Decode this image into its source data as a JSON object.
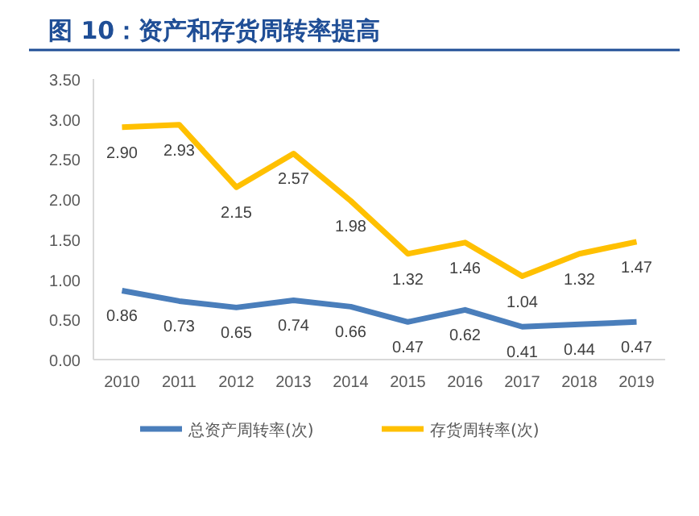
{
  "chart_data": {
    "type": "line",
    "title": "图 10：资产和存货周转率提高",
    "categories": [
      "2010",
      "2011",
      "2012",
      "2013",
      "2014",
      "2015",
      "2016",
      "2017",
      "2018",
      "2019"
    ],
    "series": [
      {
        "name": "总资产周转率(次)",
        "color": "#4a7ebb",
        "values": [
          0.86,
          0.73,
          0.65,
          0.74,
          0.66,
          0.47,
          0.62,
          0.41,
          0.44,
          0.47
        ],
        "value_labels": [
          "0.86",
          "0.73",
          "0.65",
          "0.74",
          "0.66",
          "0.47",
          "0.62",
          "0.41",
          "0.44",
          "0.47"
        ]
      },
      {
        "name": "存货周转率(次)",
        "color": "#ffc000",
        "values": [
          2.9,
          2.93,
          2.15,
          2.57,
          1.98,
          1.32,
          1.46,
          1.04,
          1.32,
          1.47
        ],
        "value_labels": [
          "2.90",
          "2.93",
          "2.15",
          "2.57",
          "1.98",
          "1.32",
          "1.46",
          "1.04",
          "1.32",
          "1.47"
        ]
      }
    ],
    "ylim": [
      0,
      3.5
    ],
    "yticks": [
      {
        "value": 0,
        "label": "0.00"
      },
      {
        "value": 0.5,
        "label": "0.50"
      },
      {
        "value": 1,
        "label": "1.00"
      },
      {
        "value": 1.5,
        "label": "1.50"
      },
      {
        "value": 2,
        "label": "2.00"
      },
      {
        "value": 2.5,
        "label": "2.50"
      },
      {
        "value": 3,
        "label": "3.00"
      },
      {
        "value": 3.5,
        "label": "3.50"
      }
    ],
    "legend": "bottom",
    "grid": false,
    "marker": "none"
  }
}
